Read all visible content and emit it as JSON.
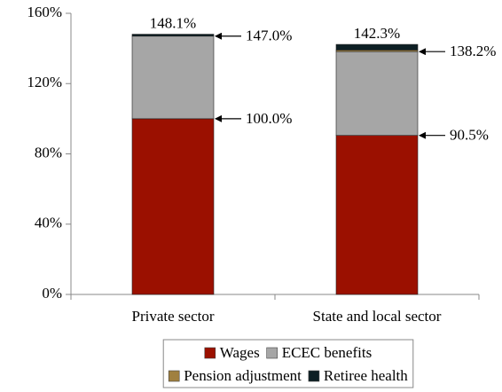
{
  "chart_data": {
    "type": "stacked_bar",
    "categories": [
      "Private sector",
      "State and local sector"
    ],
    "series": [
      {
        "name": "Wages",
        "color": "#9b1000",
        "values": [
          100.0,
          90.5
        ]
      },
      {
        "name": "ECEC benefits",
        "color": "#a6a6a6",
        "values": [
          47.0,
          47.7
        ]
      },
      {
        "name": "Pension adjustment",
        "color": "#a08040",
        "values": [
          0,
          0.9
        ]
      },
      {
        "name": "Retiree health",
        "color": "#0d1f24",
        "values": [
          1.1,
          3.2
        ]
      }
    ],
    "ylim": [
      0,
      160
    ],
    "yticks": [
      {
        "value": 0,
        "label": "0%"
      },
      {
        "value": 40,
        "label": "40%"
      },
      {
        "value": 80,
        "label": "80%"
      },
      {
        "value": 120,
        "label": "120%"
      },
      {
        "value": 160,
        "label": "160%"
      }
    ],
    "annotations": [
      {
        "category": "Private sector",
        "y": 148.1,
        "text": "148.1%"
      },
      {
        "category": "Private sector",
        "y": 147.0,
        "text": "147.0%"
      },
      {
        "category": "Private sector",
        "y": 100.0,
        "text": "100.0%"
      },
      {
        "category": "State and local sector",
        "y": 142.3,
        "text": "142.3%"
      },
      {
        "category": "State and local sector",
        "y": 138.2,
        "text": "138.2%"
      },
      {
        "category": "State and local sector",
        "y": 90.5,
        "text": "90.5%"
      }
    ],
    "legend": "bottom"
  }
}
